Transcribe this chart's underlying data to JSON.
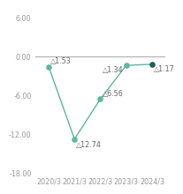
{
  "x_labels": [
    "2020/3",
    "2021/3",
    "2022/3",
    "2023/3",
    "2024/3"
  ],
  "x_values": [
    0,
    1,
    2,
    3,
    4
  ],
  "y_values": [
    -1.53,
    -12.74,
    -6.56,
    -1.34,
    -1.17
  ],
  "annotations": [
    "△1.53",
    "△12.74",
    "△6.56",
    "△1.34",
    "△1.17"
  ],
  "ann_x_offsets": [
    0.07,
    0.07,
    0.07,
    -0.9,
    0.07
  ],
  "ann_y_offsets": [
    0.6,
    -1.2,
    0.6,
    -1.0,
    -1.0
  ],
  "line_color": "#5bb8a0",
  "dot_colors": [
    "#5bb8a0",
    "#5bb8a0",
    "#5bb8a0",
    "#5bb8a0",
    "#1a5f5a"
  ],
  "ylim": [
    -18,
    7.5
  ],
  "yticks": [
    6.0,
    0,
    -6.0,
    -12.0,
    -18.0
  ],
  "zero_line_color": "#999999",
  "background_color": "#ffffff",
  "font_color": "#999999",
  "annotation_fontsize": 5.8,
  "tick_fontsize": 5.8
}
